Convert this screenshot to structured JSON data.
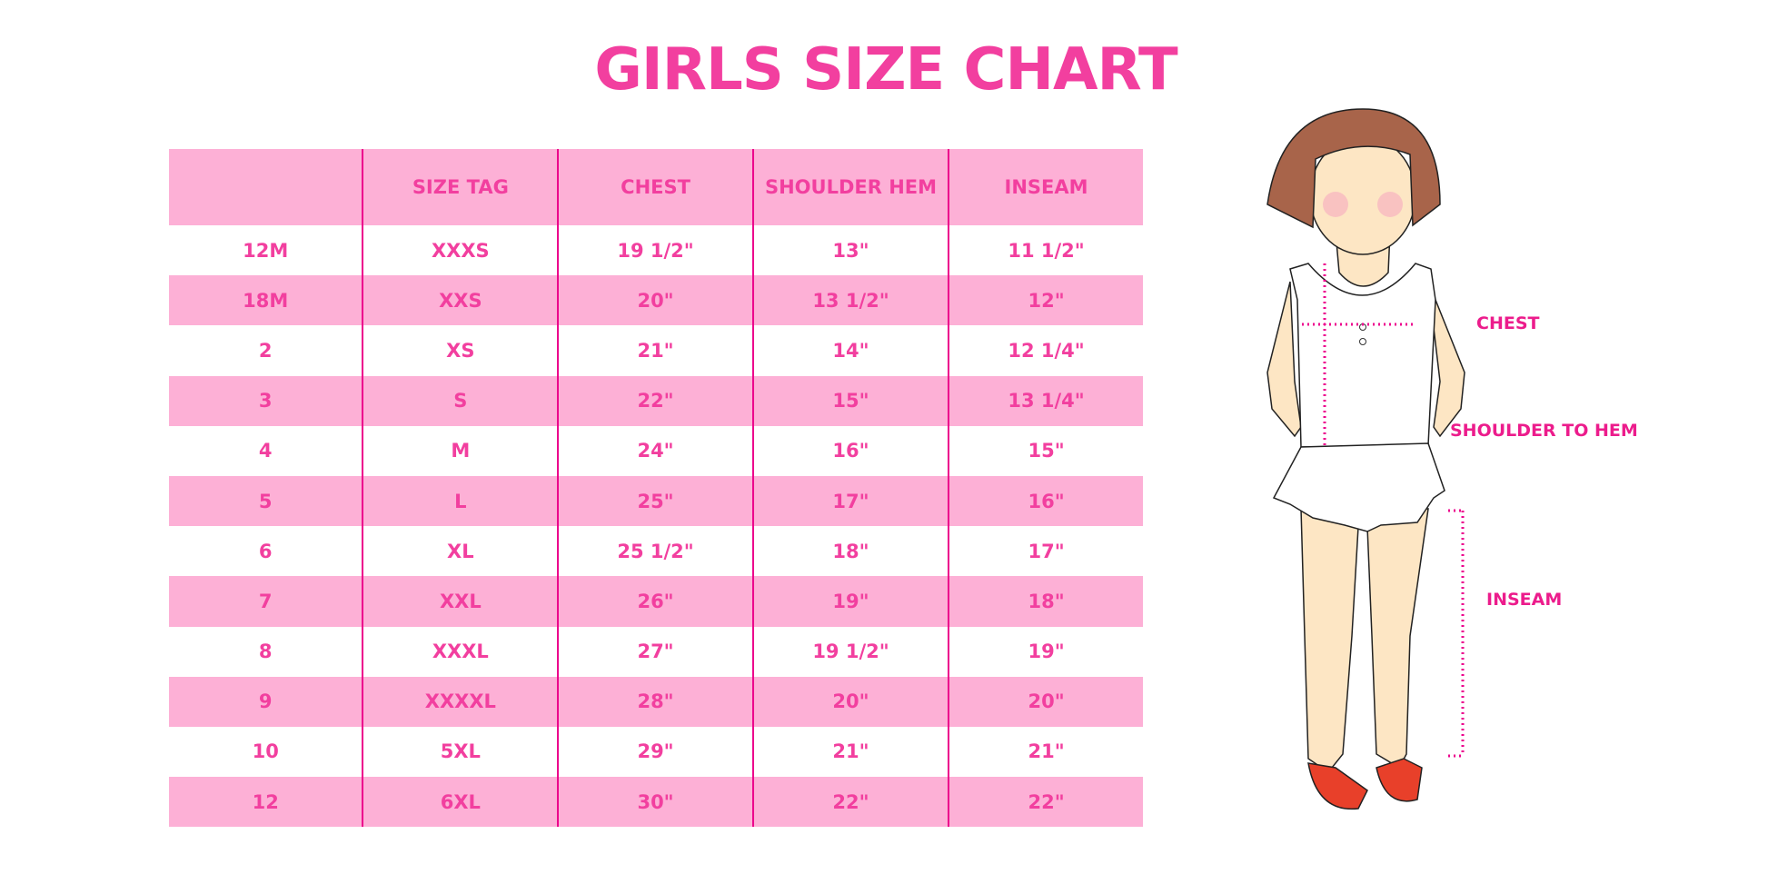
{
  "title": "GIRLS SIZE CHART",
  "table": {
    "headers": [
      "",
      "SIZE TAG",
      "CHEST",
      "SHOULDER HEM",
      "INSEAM"
    ],
    "rows": [
      [
        "12M",
        "XXXS",
        "19 1/2\"",
        "13\"",
        "11 1/2\""
      ],
      [
        "18M",
        "XXS",
        "20\"",
        "13 1/2\"",
        "12\""
      ],
      [
        "2",
        "XS",
        "21\"",
        "14\"",
        "12 1/4\""
      ],
      [
        "3",
        "S",
        "22\"",
        "15\"",
        "13 1/4\""
      ],
      [
        "4",
        "M",
        "24\"",
        "16\"",
        "15\""
      ],
      [
        "5",
        "L",
        "25\"",
        "17\"",
        "16\""
      ],
      [
        "6",
        "XL",
        "25 1/2\"",
        "18\"",
        "17\""
      ],
      [
        "7",
        "XXL",
        "26\"",
        "19\"",
        "18\""
      ],
      [
        "8",
        "XXXL",
        "27\"",
        "19 1/2\"",
        "19\""
      ],
      [
        "9",
        "XXXXL",
        "28\"",
        "20\"",
        "20\""
      ],
      [
        "10",
        "5XL",
        "29\"",
        "21\"",
        "21\""
      ],
      [
        "12",
        "6XL",
        "30\"",
        "22\"",
        "22\""
      ]
    ]
  },
  "figure": {
    "labels": {
      "chest": "CHEST",
      "shoulder_to_hem": "SHOULDER TO HEM",
      "inseam": "INSEAM"
    }
  },
  "colors": {
    "accent": "#f23f9f",
    "row_pink": "#fdb0d6",
    "divider": "#ec008c"
  }
}
